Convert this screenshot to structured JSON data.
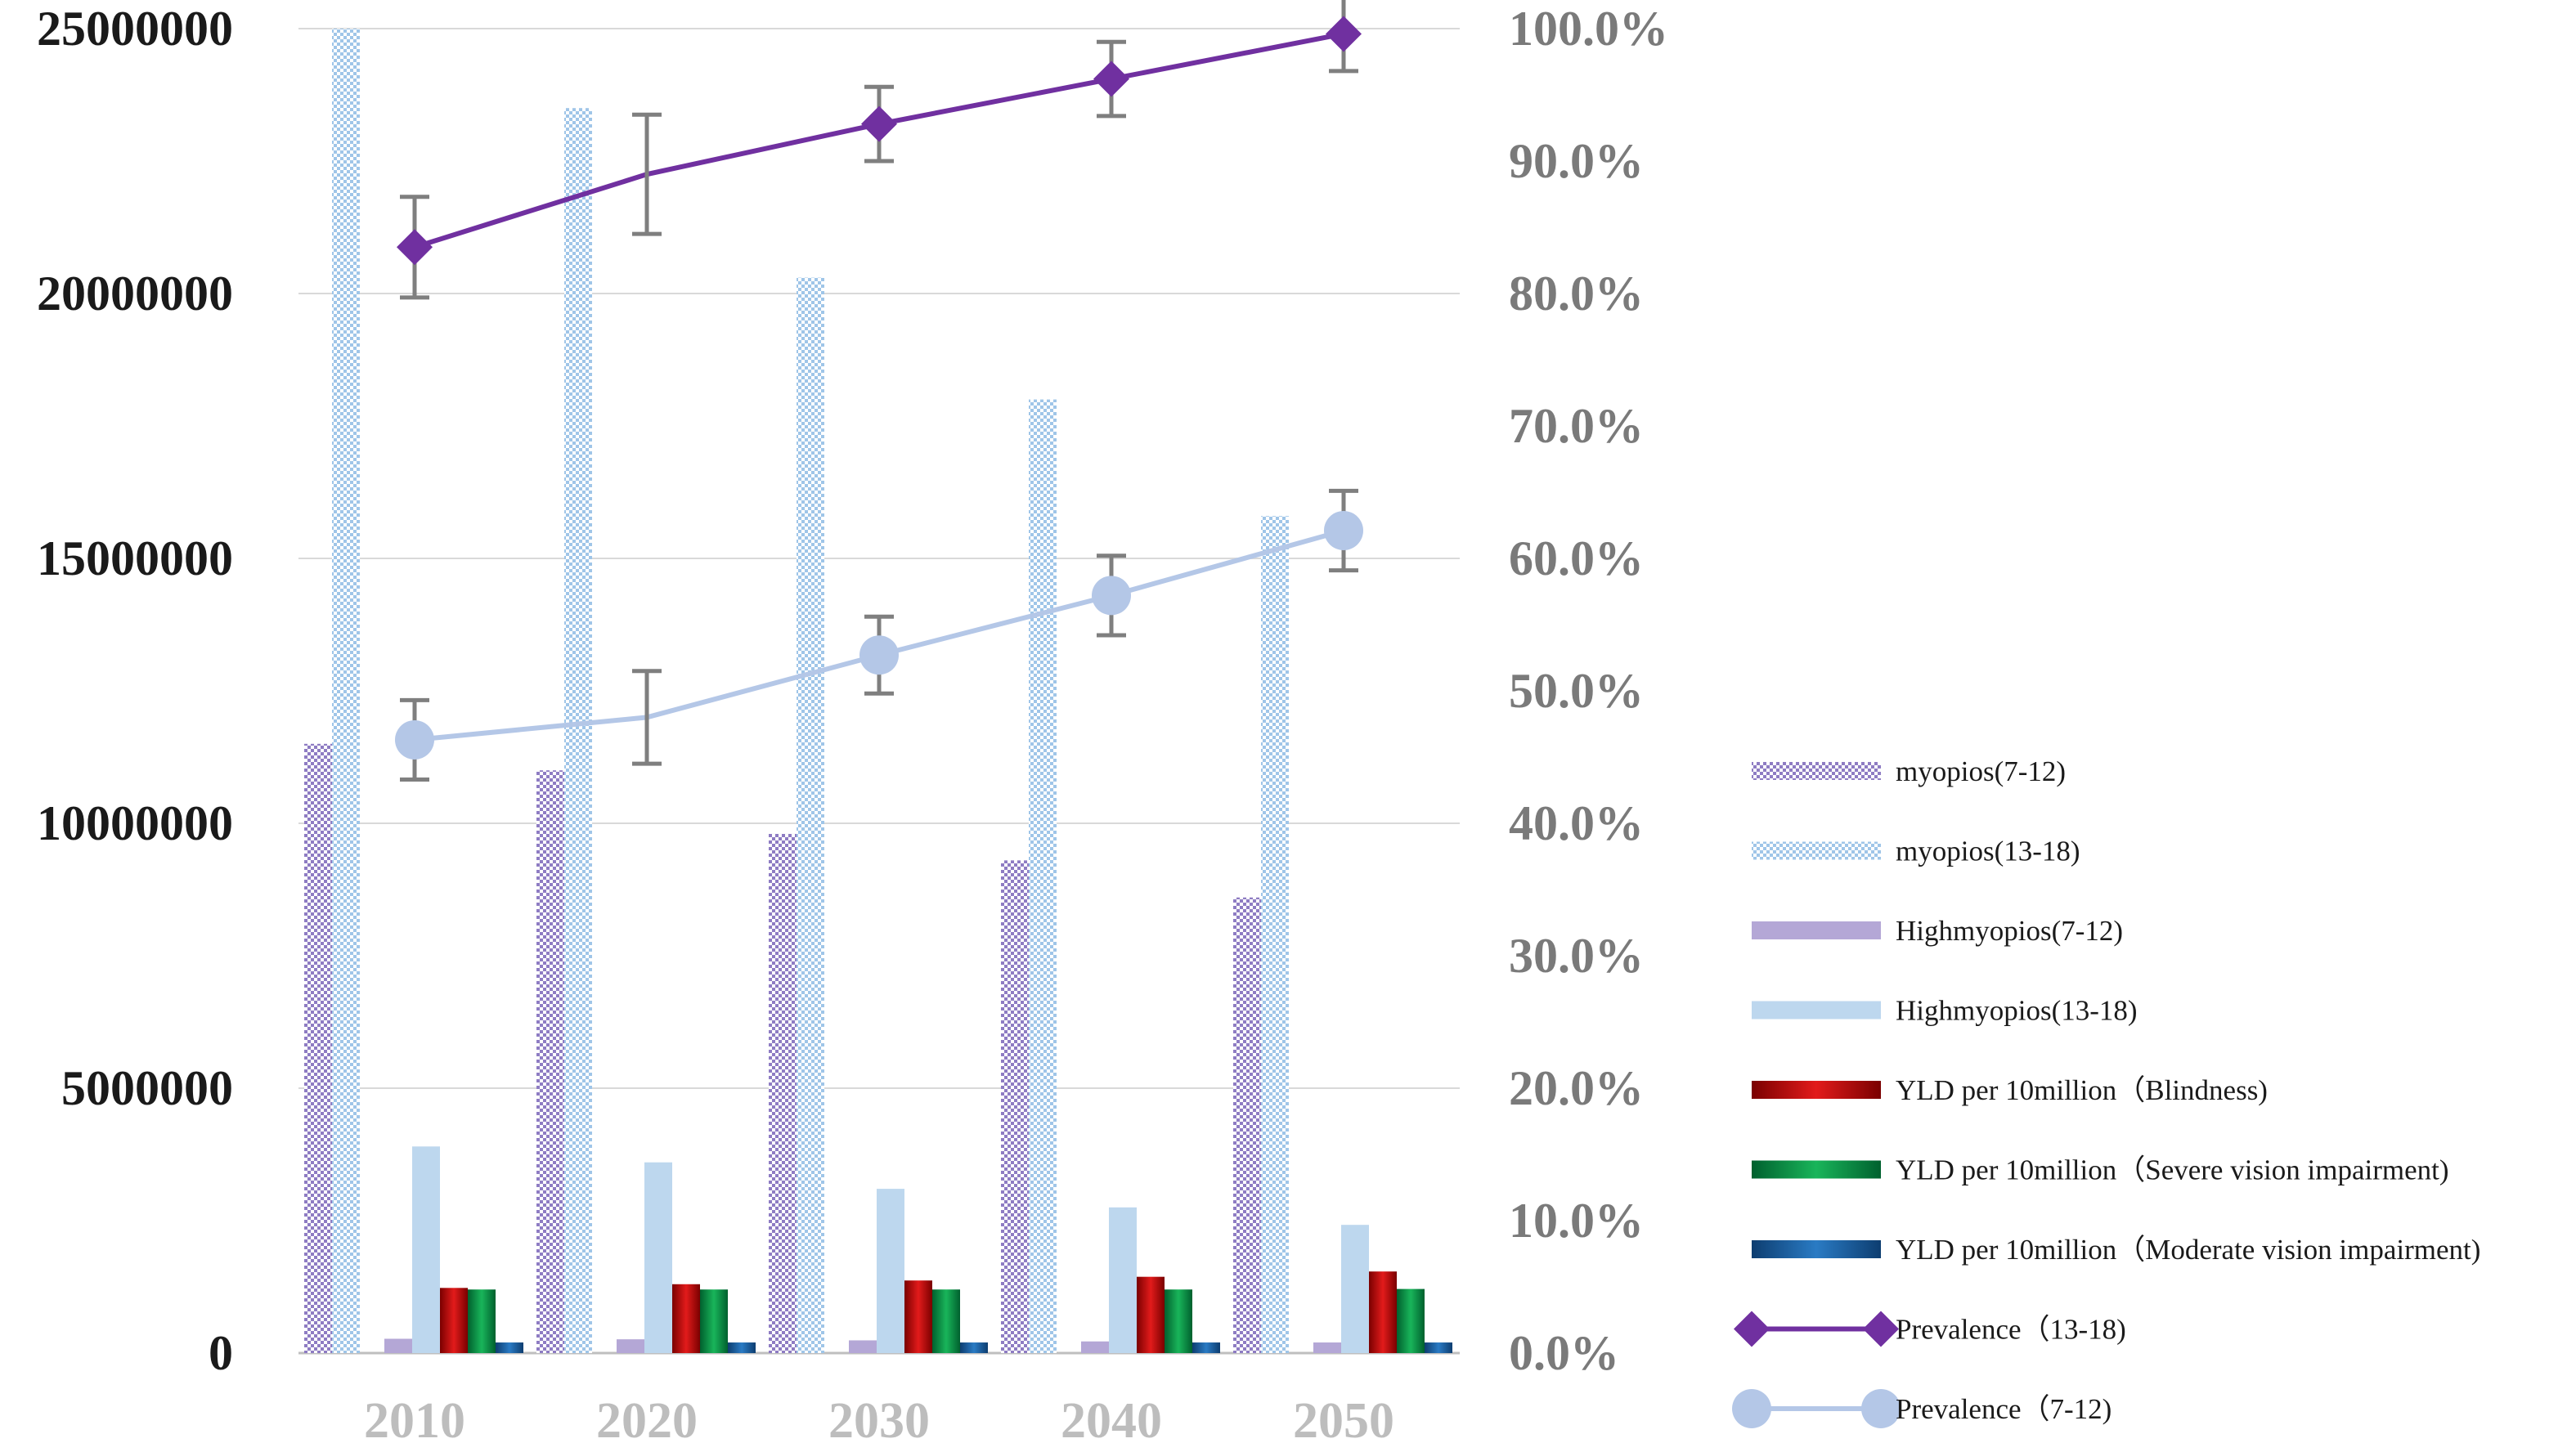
{
  "chart_data": {
    "type": "bar+line",
    "title": "",
    "xlabel": "",
    "ylabel_left": "",
    "ylabel_right": "",
    "categories": [
      "2010",
      "2020",
      "2030",
      "2040",
      "2050"
    ],
    "left_axis": {
      "range": [
        0,
        25000000
      ],
      "ticks": [
        0,
        5000000,
        10000000,
        15000000,
        20000000,
        25000000
      ],
      "tick_labels": [
        "0",
        "5000000",
        "10000000",
        "15000000",
        "20000000",
        "25000000"
      ]
    },
    "right_axis": {
      "range": [
        0,
        100
      ],
      "ticks": [
        0,
        10,
        20,
        30,
        40,
        50,
        60,
        70,
        80,
        90,
        100
      ],
      "tick_labels": [
        "0.0%",
        "10.0%",
        "20.0%",
        "30.0%",
        "40.0%",
        "50.0%",
        "60.0%",
        "70.0%",
        "80.0%",
        "90.0%",
        "100.0%"
      ]
    },
    "grid": true,
    "legend_position": "right",
    "bar_series": [
      {
        "name": "myopios(7-12)",
        "key": "myopia-7-12",
        "pattern": "checker-purple",
        "color": "#8e7cc3",
        "values": [
          11500000,
          11000000,
          9800000,
          9300000,
          8600000
        ]
      },
      {
        "name": "myopios(13-18)",
        "key": "myopia-13-18",
        "pattern": "checker-blue",
        "color": "#9fc5e8",
        "values": [
          25000000,
          23500000,
          20300000,
          18000000,
          15800000
        ]
      },
      {
        "name": "Highmyopios(7-12)",
        "key": "high-myopia-7-12",
        "pattern": "solid",
        "color": "#b4a7d6",
        "values": [
          270000,
          260000,
          240000,
          220000,
          200000
        ]
      },
      {
        "name": "Highmyopios(13-18)",
        "key": "high-myopia-13-18",
        "pattern": "solid",
        "color": "#bdd7ee",
        "values": [
          3900000,
          3600000,
          3100000,
          2750000,
          2420000
        ]
      },
      {
        "name": "YLD per 10million（Blindness)",
        "key": "yld-blindness",
        "pattern": "gradient",
        "color": "#c00000",
        "values": [
          1230000,
          1300000,
          1370000,
          1440000,
          1540000
        ]
      },
      {
        "name": "YLD per 10million（Severe vision impairment)",
        "key": "yld-severe",
        "pattern": "gradient",
        "color": "#00a050",
        "values": [
          1200000,
          1200000,
          1200000,
          1200000,
          1210000
        ]
      },
      {
        "name": "YLD per 10million（Moderate vision impairment)",
        "key": "yld-moderate",
        "pattern": "gradient",
        "color": "#1f5fa0",
        "values": [
          200000,
          200000,
          200000,
          200000,
          200000
        ]
      }
    ],
    "line_series": [
      {
        "name": "Prevalence（13-18)",
        "key": "prevalence-13-18",
        "marker": "diamond",
        "color": "#7030a0",
        "values": [
          83.5,
          89.0,
          92.8,
          96.2,
          99.6
        ],
        "error": [
          3.8,
          4.5,
          2.8,
          2.8,
          2.8
        ]
      },
      {
        "name": "Prevalence（7-12)",
        "key": "prevalence-7-12",
        "marker": "circle",
        "color": "#b4c7e7",
        "values": [
          46.3,
          48.0,
          52.7,
          57.2,
          62.1
        ],
        "error": [
          3.0,
          3.5,
          2.9,
          3.0,
          3.0
        ]
      }
    ]
  }
}
